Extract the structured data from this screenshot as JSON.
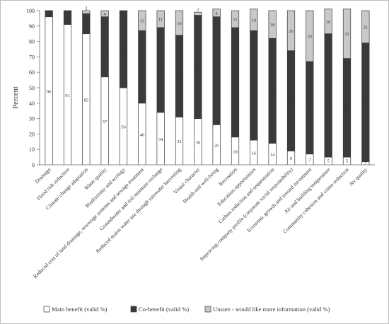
{
  "chart_data": {
    "type": "bar",
    "stacked": true,
    "ylabel": "Percent",
    "xlabel": "",
    "ylim": [
      0,
      100
    ],
    "yticks": [
      0,
      10,
      20,
      30,
      40,
      50,
      60,
      70,
      80,
      90,
      100
    ],
    "grid": false,
    "legend_position": "bottom",
    "categories": [
      "Drainage",
      "Flood risk reduction",
      "Climate change adaptation",
      "Water quality",
      "Biodiversity and ecology",
      "Reduced cost of land drainage, sewerage systems and sewage treatment",
      "Groundwater and soil moisture recharge",
      "Reduced mains water use through rainwater harvesting",
      "Visual character",
      "Health and well-being",
      "Recreation",
      "Education opportunities",
      "Carbon reduction and sequestration",
      "Improving company profile (corporate social responsibility)",
      "Economic growth and inward investment",
      "Air and building temperature",
      "Community cohesion and crime reduction",
      "Air quality"
    ],
    "series": [
      {
        "name": "Main benefit (valid %)",
        "color": "#ffffff",
        "label_color": "#333333",
        "values": [
          96,
          91,
          85,
          57,
          50,
          40,
          34,
          31,
          30,
          26,
          18,
          16,
          14,
          9,
          7,
          5,
          5,
          2
        ],
        "labels": [
          "96",
          "91",
          "85",
          "57",
          "50",
          "40",
          "34",
          "31",
          "30",
          "26",
          "18",
          "16",
          "14",
          "9",
          "7",
          "5",
          "5",
          "2"
        ]
      },
      {
        "name": "Co-benefit (valid %)",
        "color": "#3a3a3a",
        "label_color": "#ffffff",
        "values": [
          4,
          9,
          13,
          39,
          50,
          47,
          55,
          53,
          67,
          70,
          71,
          71,
          68,
          65,
          60,
          80,
          64,
          77
        ],
        "labels": [
          "4",
          "9",
          "13",
          "39",
          "50",
          "47",
          "55",
          "53",
          "67",
          "70",
          "71",
          "71",
          "68",
          "65",
          "60",
          "80",
          "64",
          "77"
        ]
      },
      {
        "name": "Unsure - would like more information (valid %)",
        "color": "#c8c8c8",
        "label_color": "#333333",
        "values": [
          0,
          0,
          2,
          4,
          0,
          13,
          11,
          16,
          2,
          5,
          11,
          14,
          18,
          26,
          33,
          16,
          32,
          21
        ],
        "labels": [
          "",
          "",
          "2",
          "4",
          "",
          "13",
          "11",
          "16",
          "2",
          "5",
          "11",
          "14",
          "18",
          "26",
          "33",
          "16",
          "32",
          "21"
        ]
      }
    ]
  }
}
